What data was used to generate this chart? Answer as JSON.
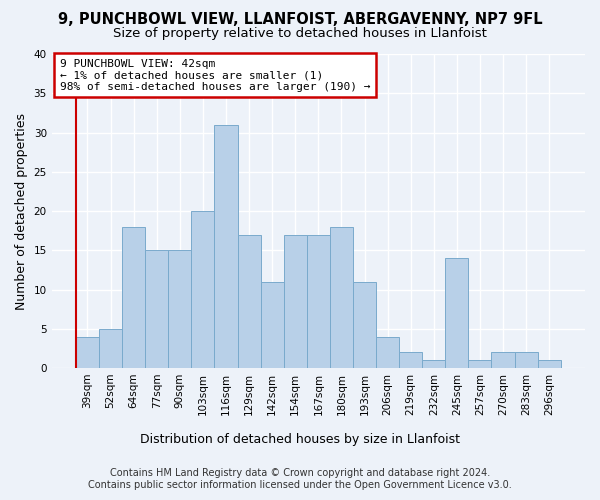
{
  "title1": "9, PUNCHBOWL VIEW, LLANFOIST, ABERGAVENNY, NP7 9FL",
  "title2": "Size of property relative to detached houses in Llanfoist",
  "xlabel": "Distribution of detached houses by size in Llanfoist",
  "ylabel": "Number of detached properties",
  "bar_labels": [
    "39sqm",
    "52sqm",
    "64sqm",
    "77sqm",
    "90sqm",
    "103sqm",
    "116sqm",
    "129sqm",
    "142sqm",
    "154sqm",
    "167sqm",
    "180sqm",
    "193sqm",
    "206sqm",
    "219sqm",
    "232sqm",
    "245sqm",
    "257sqm",
    "270sqm",
    "283sqm",
    "296sqm"
  ],
  "bar_values": [
    4,
    5,
    18,
    15,
    15,
    20,
    31,
    17,
    11,
    17,
    17,
    18,
    11,
    4,
    2,
    1,
    14,
    1,
    2,
    2,
    1
  ],
  "bar_color": "#b8d0e8",
  "bar_edge_color": "#7aaacc",
  "annotation_line1": "9 PUNCHBOWL VIEW: 42sqm",
  "annotation_line2": "← 1% of detached houses are smaller (1)",
  "annotation_line3": "98% of semi-detached houses are larger (190) →",
  "annotation_box_color": "#ffffff",
  "annotation_box_edge_color": "#cc0000",
  "ylim": [
    0,
    40
  ],
  "yticks": [
    0,
    5,
    10,
    15,
    20,
    25,
    30,
    35,
    40
  ],
  "footer_text": "Contains HM Land Registry data © Crown copyright and database right 2024.\nContains public sector information licensed under the Open Government Licence v3.0.",
  "bg_color": "#edf2f9",
  "grid_color": "#ffffff",
  "title1_fontsize": 10.5,
  "title2_fontsize": 9.5,
  "xlabel_fontsize": 9,
  "ylabel_fontsize": 9,
  "tick_fontsize": 7.5,
  "annotation_fontsize": 8,
  "footer_fontsize": 7
}
